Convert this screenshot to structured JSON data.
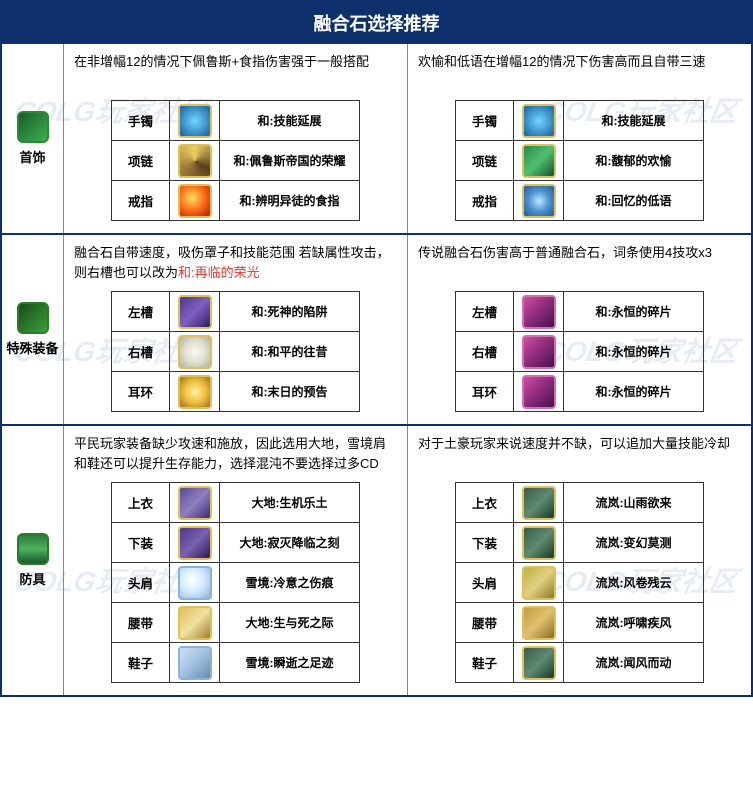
{
  "title": "融合石选择推荐",
  "watermark_text": "COLG玩家社区",
  "colors": {
    "header_bg": "#0d2f6b",
    "border": "#0d2f6b",
    "highlight": "#d93a2e",
    "watermark": "#3a6aa0"
  },
  "sections": [
    {
      "id": "jewelry",
      "label": "首饰",
      "icon_bg": "linear-gradient(135deg,#1a5c2e,#3db04a)",
      "icon_border": "#2a8a3a",
      "left": {
        "desc_parts": [
          [
            "text",
            "在非增幅12的情况下佩鲁斯+食指伤害强于一般搭配"
          ]
        ],
        "rows": [
          {
            "slot": "手镯",
            "icon_bg": "radial-gradient(circle,#6fd6ff,#1a5ea0)",
            "icon_border": "#e0c05a",
            "effect": "和:技能延展"
          },
          {
            "slot": "项链",
            "icon_bg": "conic-gradient(#f0d060,#5a4020,#a0803a,#f0d060)",
            "icon_border": "#e0c05a",
            "effect": "和:佩鲁斯帝国的荣耀"
          },
          {
            "slot": "戒指",
            "icon_bg": "radial-gradient(circle at 40% 40%,#ffe060,#ff6a1a,#a02000)",
            "icon_border": "#e0c05a",
            "effect": "和:辨明异徒的食指"
          }
        ]
      },
      "right": {
        "desc_parts": [
          [
            "text",
            "欢愉和低语在增幅12的情况下伤害高而且自带三速"
          ]
        ],
        "rows": [
          {
            "slot": "手镯",
            "icon_bg": "radial-gradient(circle,#6fd6ff,#1a5ea0)",
            "icon_border": "#e0c05a",
            "effect": "和:技能延展"
          },
          {
            "slot": "项链",
            "icon_bg": "linear-gradient(135deg,#2a8a4a,#50c070,#1a5030)",
            "icon_border": "#e0c05a",
            "effect": "和:馥郁的欢愉"
          },
          {
            "slot": "戒指",
            "icon_bg": "radial-gradient(circle,#c0e8ff,#4a90d0,#2a5a90)",
            "icon_border": "#e0c05a",
            "effect": "和:回忆的低语"
          }
        ]
      }
    },
    {
      "id": "special",
      "label": "特殊装备",
      "icon_bg": "linear-gradient(135deg,#1a4a1a,#3aa03a)",
      "icon_border": "#2a7a2a",
      "left": {
        "desc_parts": [
          [
            "text",
            "融合石自带速度，吸伤罩子和技能范围\n若缺属性攻击，则右槽也可以改为"
          ],
          [
            "hl",
            "和:再临的荣光"
          ]
        ],
        "rows": [
          {
            "slot": "左槽",
            "icon_bg": "linear-gradient(135deg,#4a3a8a,#8060c0,#2a2060)",
            "icon_border": "#e0c05a",
            "effect": "和:死神的陷阱"
          },
          {
            "slot": "右槽",
            "icon_bg": "radial-gradient(circle,#f8f8f8,#e0e0d0,#b0b0a0)",
            "icon_border": "#e0c05a",
            "effect": "和:和平的往昔"
          },
          {
            "slot": "耳环",
            "icon_bg": "radial-gradient(circle,#fff0a0,#f0c040,#a07020)",
            "icon_border": "#e0c05a",
            "effect": "和:末日的预告"
          }
        ]
      },
      "right": {
        "desc_parts": [
          [
            "text",
            "传说融合石伤害高于普通融合石，词条使用4技攻x3"
          ]
        ],
        "rows": [
          {
            "slot": "左槽",
            "icon_bg": "linear-gradient(135deg,#d050a0,#8a2a7a,#4a104a)",
            "icon_border": "#d070b0",
            "effect": "和:永恒的碎片"
          },
          {
            "slot": "右槽",
            "icon_bg": "linear-gradient(135deg,#d050a0,#8a2a7a,#4a104a)",
            "icon_border": "#d070b0",
            "effect": "和:永恒的碎片"
          },
          {
            "slot": "耳环",
            "icon_bg": "linear-gradient(135deg,#d050a0,#8a2a7a,#4a104a)",
            "icon_border": "#d070b0",
            "effect": "和:永恒的碎片"
          }
        ]
      }
    },
    {
      "id": "armor",
      "label": "防具",
      "icon_bg": "linear-gradient(180deg,#2a7a3a,#50b060,#1a5a2a)",
      "icon_border": "#2a7a2a",
      "left": {
        "desc_parts": [
          [
            "text",
            "平民玩家装备缺少攻速和施放，因此选用大地，雪境肩和鞋还可以提升生存能力，选择混沌不要选择过多CD"
          ]
        ],
        "rows": [
          {
            "slot": "上衣",
            "icon_bg": "linear-gradient(135deg,#5a4a9a,#9080c0,#3a2a7a)",
            "icon_border": "#e0c05a",
            "effect": "大地:生机乐土"
          },
          {
            "slot": "下装",
            "icon_bg": "linear-gradient(135deg,#4a3a8a,#7a60b0,#2a1a5a)",
            "icon_border": "#e0c05a",
            "effect": "大地:寂灭降临之刻"
          },
          {
            "slot": "头肩",
            "icon_bg": "radial-gradient(circle at 40% 40%,#ffffff,#d0e8ff,#90b0d0)",
            "icon_border": "#8ab4dc",
            "effect": "雪境:冷意之伤痕"
          },
          {
            "slot": "腰带",
            "icon_bg": "linear-gradient(135deg,#e0c060,#f0e0a0,#a08030)",
            "icon_border": "#e0c05a",
            "effect": "大地:生与死之际"
          },
          {
            "slot": "鞋子",
            "icon_bg": "linear-gradient(135deg,#d0e0f0,#a0c0e0,#6a8ab0)",
            "icon_border": "#8ab4dc",
            "effect": "雪境:瞬逝之足迹"
          }
        ]
      },
      "right": {
        "desc_parts": [
          [
            "text",
            "对于土豪玩家来说速度并不缺，可以追加大量技能冷却"
          ]
        ],
        "rows": [
          {
            "slot": "上衣",
            "icon_bg": "linear-gradient(135deg,#3a5a4a,#608a70,#1a3a2a)",
            "icon_border": "#e0c05a",
            "effect": "流岚:山雨欲来"
          },
          {
            "slot": "下装",
            "icon_bg": "linear-gradient(135deg,#3a5a4a,#608a70,#1a3a2a)",
            "icon_border": "#e0c05a",
            "effect": "流岚:变幻莫测"
          },
          {
            "slot": "头肩",
            "icon_bg": "linear-gradient(135deg,#c0b04a,#e0d080,#8a7a2a)",
            "icon_border": "#e0c05a",
            "effect": "流岚:风卷残云"
          },
          {
            "slot": "腰带",
            "icon_bg": "linear-gradient(135deg,#c0a040,#e0c070,#8a6a20)",
            "icon_border": "#e0c05a",
            "effect": "流岚:呼啸疾风"
          },
          {
            "slot": "鞋子",
            "icon_bg": "linear-gradient(135deg,#3a5a4a,#608a70,#1a3a2a)",
            "icon_border": "#e0c05a",
            "effect": "流岚:闻风而动"
          }
        ]
      }
    }
  ]
}
